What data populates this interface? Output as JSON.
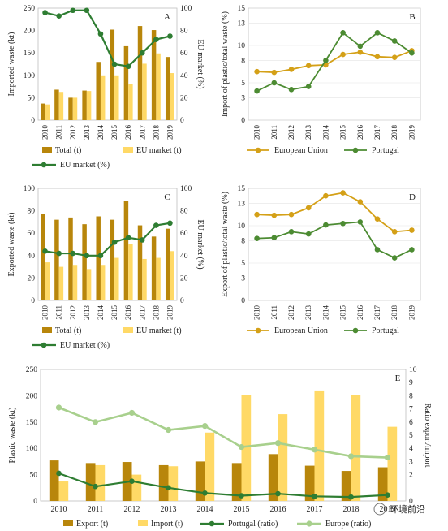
{
  "colors": {
    "total": "#b8860b",
    "eu_bar": "#ffd966",
    "eu_line": "#2e7d32",
    "eu_pct": "#3a7d2e",
    "european_union": "#d4a017",
    "portugal": "#4c8b32",
    "export": "#b8860b",
    "import": "#ffd966",
    "portugal_ratio": "#2e7d32",
    "europe_ratio": "#a8d08d"
  },
  "watermark": "环境前沿",
  "chart_data": [
    {
      "panel": "A",
      "type": "bar+line",
      "panel_label": "A",
      "x": [
        "2010",
        "2011",
        "2012",
        "2013",
        "2014",
        "2015",
        "2016",
        "2017",
        "2018",
        "2019"
      ],
      "ylabel": "Imported waste (kt)",
      "ylim": [
        0,
        250
      ],
      "yticks": [
        0,
        50,
        100,
        150,
        200,
        250
      ],
      "y2label": "EU market (%)",
      "y2lim": [
        0,
        100
      ],
      "y2ticks": [
        0,
        20,
        40,
        60,
        80,
        100
      ],
      "series": [
        {
          "name": "Total (t)",
          "kind": "bar",
          "values": [
            37,
            68,
            50,
            66,
            130,
            202,
            165,
            210,
            201,
            141
          ]
        },
        {
          "name": "EU market (t)",
          "kind": "bar",
          "values": [
            35,
            63,
            50,
            65,
            100,
            100,
            80,
            126,
            149,
            105
          ]
        },
        {
          "name": "EU market (%)",
          "kind": "line",
          "axis": "right",
          "values": [
            96,
            93,
            98,
            98,
            77,
            50,
            48,
            60,
            72,
            75
          ]
        }
      ],
      "legend": [
        "Total (t)",
        "EU market (t)",
        "EU market (%)"
      ]
    },
    {
      "panel": "B",
      "type": "line",
      "panel_label": "B",
      "x": [
        "2010",
        "2011",
        "2012",
        "2013",
        "2014",
        "2015",
        "2016",
        "2017",
        "2018",
        "2019"
      ],
      "ylabel": "Import of plastic/total waste (%)",
      "ylim": [
        0,
        15
      ],
      "yticks": [
        0,
        3,
        5,
        8,
        10,
        13,
        15
      ],
      "series": [
        {
          "name": "European Union",
          "values": [
            6.5,
            6.4,
            6.8,
            7.3,
            7.4,
            8.8,
            9.1,
            8.5,
            8.4,
            9.3
          ]
        },
        {
          "name": "Portugal",
          "values": [
            3.9,
            5.0,
            4.1,
            4.5,
            8.0,
            11.7,
            9.9,
            11.7,
            10.6,
            9.0
          ]
        }
      ],
      "legend": [
        "European Union",
        "Portugal"
      ]
    },
    {
      "panel": "C",
      "type": "bar+line",
      "panel_label": "C",
      "x": [
        "2010",
        "2011",
        "2012",
        "2013",
        "2014",
        "2015",
        "2016",
        "2017",
        "2018",
        "2019"
      ],
      "ylabel": "Exported waste (kt)",
      "ylim": [
        0,
        100
      ],
      "yticks": [
        0,
        20,
        40,
        60,
        80,
        100
      ],
      "y2label": "EU market (%)",
      "y2lim": [
        0,
        100
      ],
      "y2ticks": [
        0,
        20,
        40,
        60,
        80,
        100
      ],
      "series": [
        {
          "name": "Total (t)",
          "kind": "bar",
          "values": [
            77,
            72,
            74,
            68,
            75,
            72,
            89,
            67,
            57,
            64
          ]
        },
        {
          "name": "EU market (t)",
          "kind": "bar",
          "values": [
            34,
            30,
            31,
            28,
            31,
            38,
            50,
            37,
            38,
            44
          ]
        },
        {
          "name": "EU market (%)",
          "kind": "line",
          "axis": "right",
          "values": [
            44,
            42,
            42,
            40,
            40,
            52,
            56,
            54,
            67,
            69
          ]
        }
      ],
      "legend": [
        "Total (t)",
        "EU market (t)",
        "EU market (%)"
      ]
    },
    {
      "panel": "D",
      "type": "line",
      "panel_label": "D",
      "x": [
        "2010",
        "2011",
        "2012",
        "2013",
        "2014",
        "2015",
        "2016",
        "2017",
        "2018",
        "2019"
      ],
      "ylabel": "Export of plastic/total waste (%)",
      "ylim": [
        0,
        15
      ],
      "yticks": [
        0,
        3,
        5,
        8,
        10,
        13,
        15
      ],
      "series": [
        {
          "name": "European Union",
          "values": [
            11.5,
            11.4,
            11.5,
            12.4,
            14.0,
            14.4,
            13.2,
            10.9,
            9.2,
            9.4
          ]
        },
        {
          "name": "Portugal",
          "values": [
            8.3,
            8.4,
            9.2,
            8.9,
            10.1,
            10.3,
            10.5,
            6.8,
            5.7,
            6.8
          ]
        }
      ],
      "legend": [
        "European Union",
        "Portugal"
      ]
    },
    {
      "panel": "E",
      "type": "bar+line",
      "panel_label": "E",
      "x": [
        "2010",
        "2011",
        "2012",
        "2013",
        "2014",
        "2015",
        "2016",
        "2017",
        "2018",
        "2019"
      ],
      "ylabel": "Plastic waste (kt)",
      "ylim": [
        0,
        250
      ],
      "yticks": [
        0,
        50,
        100,
        150,
        200,
        250
      ],
      "y2label": "Ratio export/import",
      "y2lim": [
        0,
        10
      ],
      "y2ticks": [
        0,
        1,
        2,
        3,
        4,
        5,
        6,
        7,
        8,
        9,
        10
      ],
      "series": [
        {
          "name": "Export (t)",
          "kind": "bar",
          "values": [
            77,
            72,
            74,
            68,
            75,
            72,
            89,
            67,
            57,
            64
          ]
        },
        {
          "name": "Import (t)",
          "kind": "bar",
          "values": [
            37,
            68,
            50,
            66,
            130,
            202,
            165,
            210,
            201,
            141
          ]
        },
        {
          "name": "Portugal (ratio)",
          "kind": "line",
          "axis": "right",
          "values": [
            2.1,
            1.1,
            1.5,
            1.0,
            0.6,
            0.4,
            0.55,
            0.35,
            0.3,
            0.45
          ]
        },
        {
          "name": "Europe (ratio)",
          "kind": "line",
          "axis": "right",
          "values": [
            7.1,
            6.0,
            6.7,
            5.4,
            5.7,
            4.1,
            4.4,
            3.9,
            3.4,
            3.3
          ]
        }
      ],
      "legend": [
        "Export (t)",
        "Import (t)",
        "Portugal (ratio)",
        "Europe (ratio)"
      ]
    }
  ]
}
